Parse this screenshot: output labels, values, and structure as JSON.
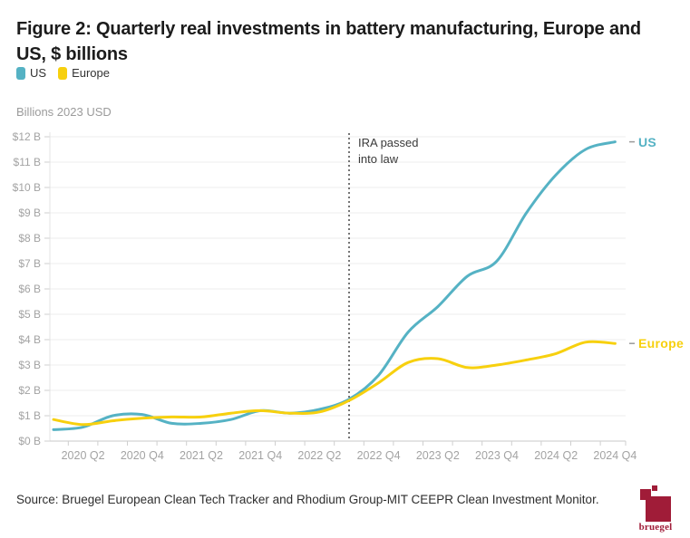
{
  "figure": {
    "title": "Figure 2: Quarterly real investments in battery manufacturing, Europe and US, $ billions",
    "units_label": "Billions 2023 USD",
    "source": "Source: Bruegel European Clean Tech Tracker and Rhodium Group-MIT CEEPR Clean Investment Monitor.",
    "logo_text": "bruegel",
    "brand_color": "#a01c38"
  },
  "chart_data": {
    "type": "line",
    "title": "Quarterly real investments in battery manufacturing, Europe and US, $ billions",
    "ylabel": "Billions 2023 USD",
    "ylim": [
      0,
      12
    ],
    "y_step": 1,
    "grid": "horizontal",
    "legend_position": "top-left",
    "end_labels": true,
    "y_tick_labels": [
      "$0 B",
      "$1 B",
      "$2 B",
      "$3 B",
      "$4 B",
      "$5 B",
      "$6 B",
      "$7 B",
      "$8 B",
      "$9 B",
      "$10 B",
      "$11 B",
      "$12 B"
    ],
    "x_tick_labels": [
      "2020 Q2",
      "2020 Q4",
      "2021 Q2",
      "2021 Q4",
      "2022 Q2",
      "2022 Q4",
      "2023 Q2",
      "2023 Q4",
      "2024 Q2",
      "2024 Q4"
    ],
    "categories": [
      "2020 Q1",
      "2020 Q2",
      "2020 Q3",
      "2020 Q4",
      "2021 Q1",
      "2021 Q2",
      "2021 Q3",
      "2021 Q4",
      "2022 Q1",
      "2022 Q2",
      "2022 Q3",
      "2022 Q4",
      "2023 Q1",
      "2023 Q2",
      "2023 Q3",
      "2023 Q4",
      "2024 Q1",
      "2024 Q2",
      "2024 Q3",
      "2024 Q4"
    ],
    "series": [
      {
        "name": "US",
        "color": "#55b2c4",
        "values": [
          0.45,
          0.55,
          1.0,
          1.05,
          0.7,
          0.7,
          0.85,
          1.2,
          1.1,
          1.25,
          1.65,
          2.6,
          4.3,
          5.3,
          6.5,
          7.1,
          9.0,
          10.5,
          11.5,
          11.8
        ]
      },
      {
        "name": "Europe",
        "color": "#f7d00e",
        "values": [
          0.85,
          0.65,
          0.8,
          0.9,
          0.95,
          0.95,
          1.1,
          1.2,
          1.1,
          1.15,
          1.6,
          2.3,
          3.1,
          3.25,
          2.9,
          3.0,
          3.2,
          3.45,
          3.9,
          3.85
        ]
      }
    ],
    "annotation": {
      "text": "IRA passed into law",
      "lines": [
        "IRA passed",
        "into law"
      ],
      "x_category": "2022 Q3"
    }
  },
  "style": {
    "gridline_color": "#ededed",
    "axis_color": "#c9c9c9",
    "tick_color": "#cfcfcf",
    "axis_text_color": "#a3a3a3",
    "annotation_color": "#3a3a3a",
    "end_dash_color": "#9a9a9a"
  }
}
